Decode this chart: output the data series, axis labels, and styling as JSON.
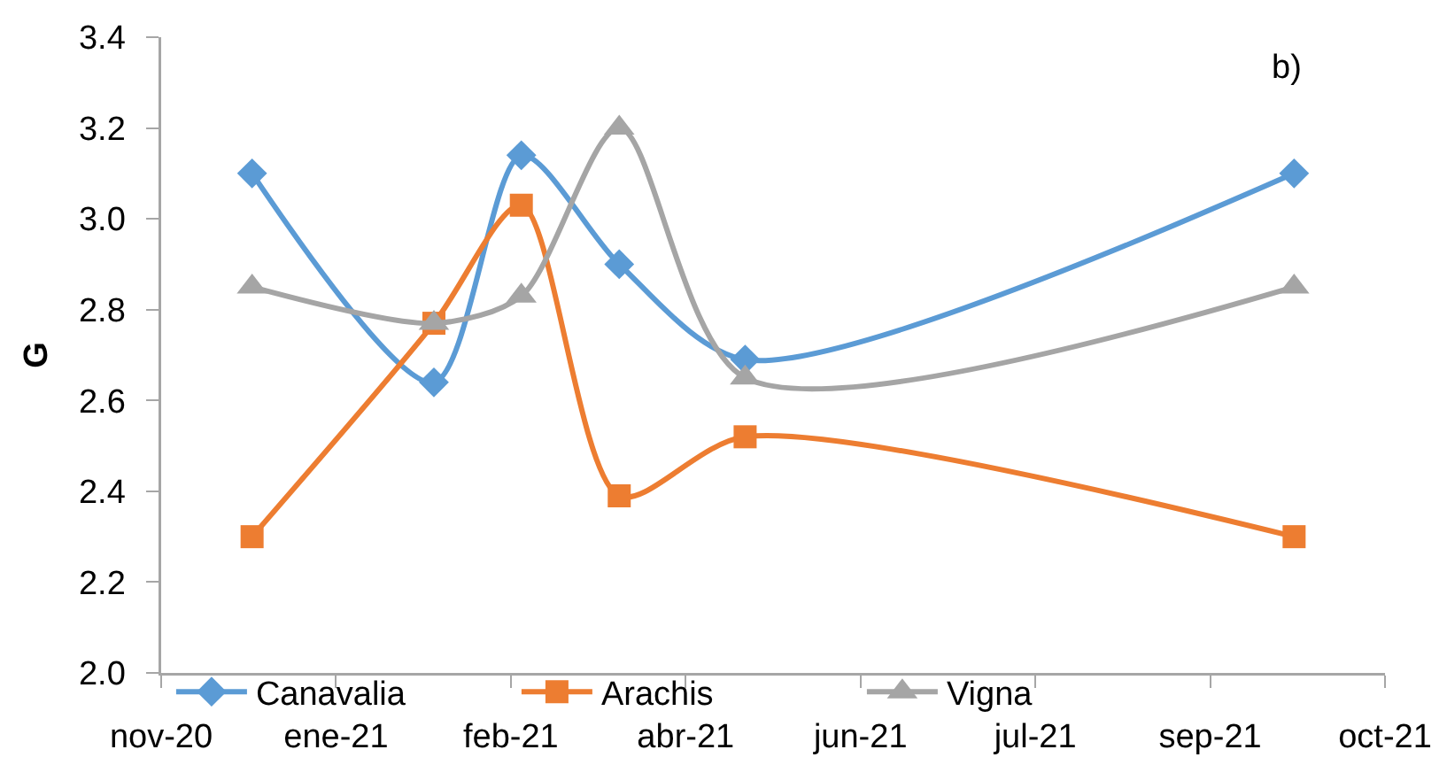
{
  "chart_data": {
    "type": "line",
    "ylabel": "G",
    "annotations": [
      "b)"
    ],
    "x": [
      "2020-12-11",
      "2021-02-01",
      "2021-02-26",
      "2021-03-26",
      "2021-05-01",
      "2021-10-05"
    ],
    "series": [
      {
        "name": "Canavalia",
        "color": "#5b9bd5",
        "marker": "diamond",
        "values": [
          3.1,
          2.64,
          3.14,
          2.9,
          2.69,
          3.1
        ]
      },
      {
        "name": "Arachis",
        "color": "#ed7d31",
        "marker": "square",
        "values": [
          2.3,
          2.77,
          3.03,
          2.39,
          2.52,
          2.3
        ]
      },
      {
        "name": "Vigna",
        "color": "#a5a5a5",
        "marker": "triangle",
        "values": [
          2.85,
          2.77,
          2.83,
          3.2,
          2.65,
          2.85
        ]
      }
    ],
    "xlim": [
      "2020-11-15",
      "2021-10-31"
    ],
    "xticks": [
      {
        "value": "2020-11-15",
        "label": "nov-20"
      },
      {
        "value": "2021-01-04",
        "label": "ene-21"
      },
      {
        "value": "2021-02-23",
        "label": "feb-21"
      },
      {
        "value": "2021-04-14",
        "label": "abr-21"
      },
      {
        "value": "2021-06-03",
        "label": "jun-21"
      },
      {
        "value": "2021-07-23",
        "label": "jul-21"
      },
      {
        "value": "2021-09-11",
        "label": "sep-21"
      },
      {
        "value": "2021-10-31",
        "label": "oct-21"
      }
    ],
    "ylim": [
      2.0,
      3.4
    ],
    "yticks": [
      {
        "value": 2,
        "label": "2.0"
      },
      2.2,
      2.4,
      2.6,
      2.8,
      {
        "value": 3,
        "label": "3.0"
      },
      3.2,
      3.4
    ],
    "grid": false,
    "legend": "bottom left",
    "line_style": "solid"
  }
}
